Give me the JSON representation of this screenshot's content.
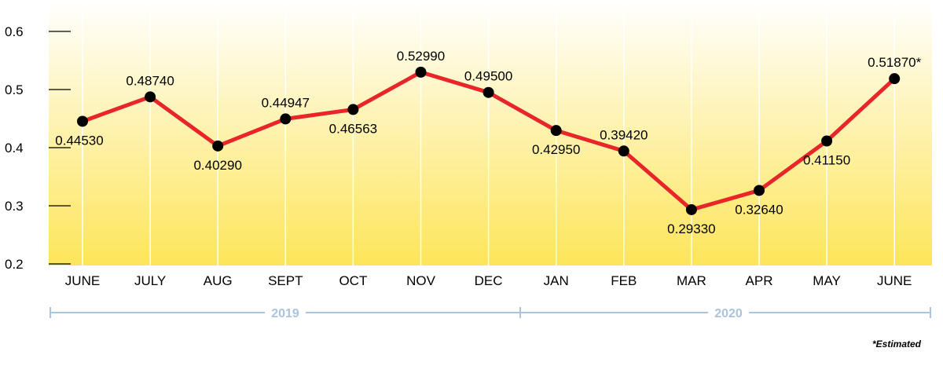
{
  "chart_data": {
    "type": "line",
    "categories": [
      "JUNE",
      "JULY",
      "AUG",
      "SEPT",
      "OCT",
      "NOV",
      "DEC",
      "JAN",
      "FEB",
      "MAR",
      "APR",
      "MAY",
      "JUNE"
    ],
    "values": [
      0.4453,
      0.4874,
      0.4029,
      0.44947,
      0.46563,
      0.5299,
      0.495,
      0.4295,
      0.3942,
      0.2933,
      0.3264,
      0.4115,
      0.5187
    ],
    "data_labels": [
      "0.44530",
      "0.48740",
      "0.40290",
      "0.44947",
      "0.46563",
      "0.52990",
      "0.49500",
      "0.42950",
      "0.39420",
      "0.29330",
      "0.32640",
      "0.41150",
      "0.51870*"
    ],
    "y_ticks": [
      "0.2",
      "0.3",
      "0.4",
      "0.5",
      "0.6"
    ],
    "ylim": [
      0.2,
      0.6
    ],
    "grid": true,
    "groups": [
      {
        "label": "2019",
        "categories": [
          "JUNE",
          "JULY",
          "AUG",
          "SEPT",
          "OCT",
          "NOV",
          "DEC"
        ]
      },
      {
        "label": "2020",
        "categories": [
          "JAN",
          "FEB",
          "MAR",
          "APR",
          "MAY",
          "JUNE"
        ]
      }
    ],
    "footnote": "*Estimated",
    "colors": {
      "line": "#e8262a",
      "marker": "#000000",
      "gradient_top": "#ffffff",
      "gradient_bottom": "#fde55a",
      "year_axis": "#a9c4dc"
    }
  }
}
